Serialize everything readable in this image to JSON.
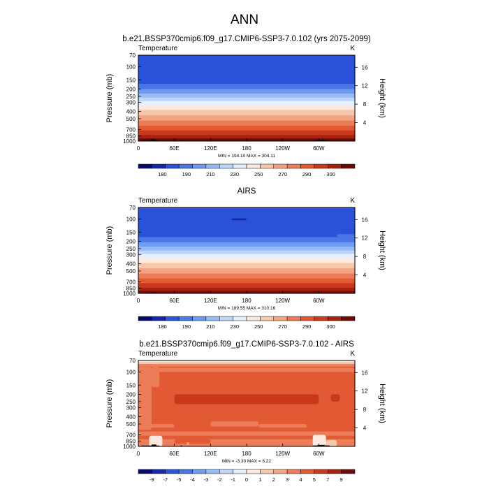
{
  "figure": {
    "title": "ANN",
    "min_label": "MIN",
    "max_label": "MAX"
  },
  "chart_data": [
    {
      "type": "heatmap",
      "title": "b.e21.BSSP370cmip6.f09_g17.CMIP6-SSP3-7.0.102 (yrs 2075-2099)",
      "left_label": "Temperature",
      "units": "K",
      "ylabel": "Pressure (mb)",
      "y2label": "Height (km)",
      "x_ticks": [
        "0",
        "60E",
        "120E",
        "180",
        "120W",
        "60W"
      ],
      "x_tick_lon": [
        0,
        60,
        120,
        180,
        240,
        300
      ],
      "xlim": [
        0,
        360
      ],
      "y_ticks": [
        "70",
        "100",
        "150",
        "200",
        "250",
        "300",
        "400",
        "500",
        "700",
        "850",
        "1000"
      ],
      "y_tick_p": [
        70,
        100,
        150,
        200,
        250,
        300,
        400,
        500,
        700,
        850,
        1000
      ],
      "ylim": [
        1000,
        70
      ],
      "height_ticks": [
        "16",
        "12",
        "8",
        "4"
      ],
      "height_km": [
        16,
        12,
        8,
        4
      ],
      "min": "194.10",
      "max": "304.11",
      "colorbar_labels": [
        "180",
        "190",
        "210",
        "230",
        "250",
        "270",
        "290",
        "300"
      ],
      "colors": [
        "#080a6b",
        "#1428a8",
        "#2a52d8",
        "#4a76e6",
        "#6f9cf0",
        "#97bbf6",
        "#bfd6fb",
        "#e6effd",
        "#fde9dd",
        "#f8c8ad",
        "#f3a482",
        "#ec7d58",
        "#e15a34",
        "#c9381a",
        "#a52110",
        "#6e0a05"
      ],
      "bands": [
        {
          "p": [
            70,
            170
          ],
          "c": 2
        },
        {
          "p": [
            170,
            200
          ],
          "c": 3
        },
        {
          "p": [
            200,
            230
          ],
          "c": 4
        },
        {
          "p": [
            230,
            260
          ],
          "c": 5
        },
        {
          "p": [
            260,
            290
          ],
          "c": 6
        },
        {
          "p": [
            290,
            330
          ],
          "c": 7
        },
        {
          "p": [
            330,
            380
          ],
          "c": 8
        },
        {
          "p": [
            380,
            450
          ],
          "c": 9
        },
        {
          "p": [
            450,
            530
          ],
          "c": 10
        },
        {
          "p": [
            530,
            620
          ],
          "c": 11
        },
        {
          "p": [
            620,
            720
          ],
          "c": 12
        },
        {
          "p": [
            720,
            830
          ],
          "c": 13
        },
        {
          "p": [
            830,
            920
          ],
          "c": 14
        },
        {
          "p": [
            920,
            1000
          ],
          "c": 15
        }
      ],
      "patches": [
        {
          "lon": [
            0,
            360
          ],
          "p": [
            960,
            1000
          ],
          "c": 15
        },
        {
          "lon": [
            5,
            40
          ],
          "p": [
            930,
            1000
          ],
          "c": 15
        }
      ],
      "terrain": [
        {
          "lon": [
            5,
            33
          ],
          "p": [
            975,
            1000
          ]
        },
        {
          "lon": [
            20,
            28
          ],
          "p": [
            945,
            1000
          ]
        },
        {
          "lon": [
            70,
            72
          ],
          "p": [
            975,
            1000
          ]
        },
        {
          "lon": [
            290,
            318
          ],
          "p": [
            975,
            1000
          ]
        },
        {
          "lon": [
            296,
            312
          ],
          "p": [
            965,
            1000
          ]
        }
      ]
    },
    {
      "type": "heatmap",
      "title": "AIRS",
      "left_label": "Temperature",
      "units": "K",
      "ylabel": "Pressure (mb)",
      "y2label": "Height (km)",
      "x_ticks": [
        "0",
        "60E",
        "120E",
        "180",
        "120W",
        "60W"
      ],
      "x_tick_lon": [
        0,
        60,
        120,
        180,
        240,
        300
      ],
      "xlim": [
        0,
        360
      ],
      "y_ticks": [
        "70",
        "100",
        "150",
        "200",
        "250",
        "300",
        "400",
        "500",
        "700",
        "850",
        "1000"
      ],
      "y_tick_p": [
        70,
        100,
        150,
        200,
        250,
        300,
        400,
        500,
        700,
        850,
        1000
      ],
      "ylim": [
        1000,
        70
      ],
      "height_ticks": [
        "16",
        "12",
        "8",
        "4"
      ],
      "height_km": [
        16,
        12,
        8,
        4
      ],
      "min": "189.55",
      "max": "310.16",
      "colorbar_labels": [
        "180",
        "190",
        "210",
        "230",
        "250",
        "270",
        "290",
        "300"
      ],
      "colors": [
        "#080a6b",
        "#1428a8",
        "#2a52d8",
        "#4a76e6",
        "#6f9cf0",
        "#97bbf6",
        "#bfd6fb",
        "#e6effd",
        "#fde9dd",
        "#f8c8ad",
        "#f3a482",
        "#ec7d58",
        "#e15a34",
        "#c9381a",
        "#a52110",
        "#6e0a05"
      ],
      "bands": [
        {
          "p": [
            70,
            175
          ],
          "c": 2
        },
        {
          "p": [
            175,
            205
          ],
          "c": 3
        },
        {
          "p": [
            205,
            235
          ],
          "c": 4
        },
        {
          "p": [
            235,
            265
          ],
          "c": 5
        },
        {
          "p": [
            265,
            295
          ],
          "c": 6
        },
        {
          "p": [
            295,
            335
          ],
          "c": 7
        },
        {
          "p": [
            335,
            390
          ],
          "c": 8
        },
        {
          "p": [
            390,
            460
          ],
          "c": 9
        },
        {
          "p": [
            460,
            540
          ],
          "c": 10
        },
        {
          "p": [
            540,
            630
          ],
          "c": 11
        },
        {
          "p": [
            630,
            730
          ],
          "c": 12
        },
        {
          "p": [
            730,
            840
          ],
          "c": 13
        },
        {
          "p": [
            840,
            930
          ],
          "c": 14
        },
        {
          "p": [
            930,
            1000
          ],
          "c": 15
        }
      ],
      "patches": [
        {
          "lon": [
            155,
            180
          ],
          "p": [
            98,
            104
          ],
          "c": 1
        },
        {
          "lon": [
            330,
            360
          ],
          "p": [
            160,
            175
          ],
          "c": 3
        }
      ],
      "terrain": [
        {
          "lon": [
            20,
            30
          ],
          "p": [
            975,
            1000
          ]
        }
      ]
    },
    {
      "type": "heatmap",
      "title": "b.e21.BSSP370cmip6.f09_g17.CMIP6-SSP3-7.0.102 - AIRS",
      "left_label": "Temperature",
      "units": "K",
      "ylabel": "Pressure (mb)",
      "y2label": "Height (km)",
      "x_ticks": [
        "0",
        "60E",
        "120E",
        "180",
        "120W",
        "60W"
      ],
      "x_tick_lon": [
        0,
        60,
        120,
        180,
        240,
        300
      ],
      "xlim": [
        0,
        360
      ],
      "y_ticks": [
        "70",
        "100",
        "150",
        "200",
        "250",
        "300",
        "400",
        "500",
        "700",
        "850",
        "1000"
      ],
      "y_tick_p": [
        70,
        100,
        150,
        200,
        250,
        300,
        400,
        500,
        700,
        850,
        1000
      ],
      "ylim": [
        1000,
        70
      ],
      "height_ticks": [
        "16",
        "12",
        "8",
        "4"
      ],
      "height_km": [
        16,
        12,
        8,
        4
      ],
      "min": "-3.30",
      "max": "8.22",
      "colorbar_labels": [
        "-9",
        "-7",
        "-5",
        "-4",
        "-3",
        "-2",
        "-1",
        "0",
        "1",
        "2",
        "3",
        "4",
        "5",
        "7",
        "9"
      ],
      "colors": [
        "#080a6b",
        "#1428a8",
        "#2a52d8",
        "#4a76e6",
        "#6f9cf0",
        "#97bbf6",
        "#bfd6fb",
        "#e6effd",
        "#fde9dd",
        "#f8c8ad",
        "#f3a482",
        "#ec7d58",
        "#e15a34",
        "#c9381a",
        "#a52110",
        "#6e0a05"
      ],
      "bands": [
        {
          "p": [
            70,
            73
          ],
          "c": 7
        },
        {
          "p": [
            73,
            78
          ],
          "c": 9
        },
        {
          "p": [
            78,
            85
          ],
          "c": 11
        },
        {
          "p": [
            85,
            630
          ],
          "c": 12
        },
        {
          "p": [
            630,
            720
          ],
          "c": 11
        },
        {
          "p": [
            720,
            800
          ],
          "c": 12
        },
        {
          "p": [
            800,
            1000
          ],
          "c": 11
        }
      ],
      "patches": [
        {
          "lon": [
            0,
            360
          ],
          "p": [
            88,
            100
          ],
          "c": 11
        },
        {
          "lon": [
            0,
            22
          ],
          "p": [
            85,
            600
          ],
          "c": 11
        },
        {
          "lon": [
            22,
            35
          ],
          "p": [
            85,
            160
          ],
          "c": 11
        },
        {
          "lon": [
            60,
            300
          ],
          "p": [
            200,
            270
          ],
          "c": 13
        },
        {
          "lon": [
            300,
            320
          ],
          "p": [
            190,
            265
          ],
          "c": 12
        },
        {
          "lon": [
            320,
            335
          ],
          "p": [
            200,
            250
          ],
          "c": 13
        },
        {
          "lon": [
            0,
            60
          ],
          "p": [
            500,
            560
          ],
          "c": 11
        },
        {
          "lon": [
            120,
            200
          ],
          "p": [
            460,
            540
          ],
          "c": 11
        },
        {
          "lon": [
            200,
            280
          ],
          "p": [
            500,
            560
          ],
          "c": 11
        },
        {
          "lon": [
            60,
            120
          ],
          "p": [
            800,
            920
          ],
          "c": 12
        },
        {
          "lon": [
            18,
            40
          ],
          "p": [
            720,
            1000
          ],
          "c": 8
        },
        {
          "lon": [
            290,
            312
          ],
          "p": [
            700,
            1000
          ],
          "c": 8
        },
        {
          "lon": [
            312,
            330
          ],
          "p": [
            820,
            1000
          ],
          "c": 9
        },
        {
          "lon": [
            80,
            85
          ],
          "p": [
            880,
            960
          ],
          "c": 10
        }
      ],
      "terrain": [
        {
          "lon": [
            5,
            35
          ],
          "p": [
            975,
            1000
          ]
        },
        {
          "lon": [
            22,
            30
          ],
          "p": [
            945,
            1000
          ]
        },
        {
          "lon": [
            70,
            73
          ],
          "p": [
            975,
            1000
          ]
        },
        {
          "lon": [
            290,
            318
          ],
          "p": [
            972,
            1000
          ]
        },
        {
          "lon": [
            298,
            310
          ],
          "p": [
            955,
            1000
          ]
        }
      ]
    }
  ]
}
